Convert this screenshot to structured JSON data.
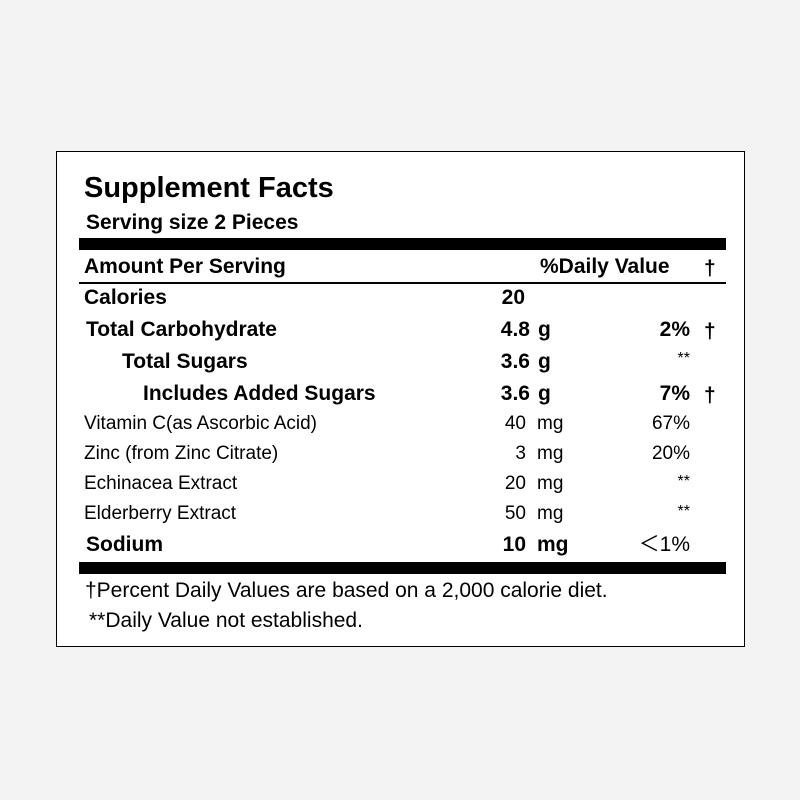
{
  "label": {
    "title": "Supplement Facts",
    "serving_size": "Serving size 2 Pieces",
    "header": {
      "amount": "Amount Per Serving",
      "daily_value": "%Daily Value",
      "dagger": "†"
    },
    "rows": [
      {
        "name": "Calories",
        "qty": "20",
        "unit": "",
        "dv": "",
        "mark": ""
      },
      {
        "name": "Total Carbohydrate",
        "qty": "4.8",
        "unit": "g",
        "dv": "2%",
        "mark": "†"
      },
      {
        "name": "Total Sugars",
        "qty": "3.6",
        "unit": "g",
        "dv": "**",
        "mark": ""
      },
      {
        "name": "Includes Added Sugars",
        "qty": "3.6",
        "unit": "g",
        "dv": "7%",
        "mark": "†"
      },
      {
        "name": "Vitamin C(as Ascorbic Acid)",
        "qty": "40",
        "unit": "mg",
        "dv": "67%",
        "mark": ""
      },
      {
        "name": "Zinc (from Zinc Citrate)",
        "qty": "3",
        "unit": "mg",
        "dv": "20%",
        "mark": ""
      },
      {
        "name": "Echinacea Extract",
        "qty": "20",
        "unit": "mg",
        "dv": "**",
        "mark": ""
      },
      {
        "name": "Elderberry Extract",
        "qty": "50",
        "unit": "mg",
        "dv": "**",
        "mark": ""
      },
      {
        "name": "Sodium",
        "qty": "10",
        "unit": "mg",
        "dv": "＜1%",
        "mark": ""
      }
    ],
    "footnotes": {
      "percent": "†Percent Daily Values are based on a 2,000 calorie diet.",
      "not_established": "**Daily Value not established."
    }
  }
}
